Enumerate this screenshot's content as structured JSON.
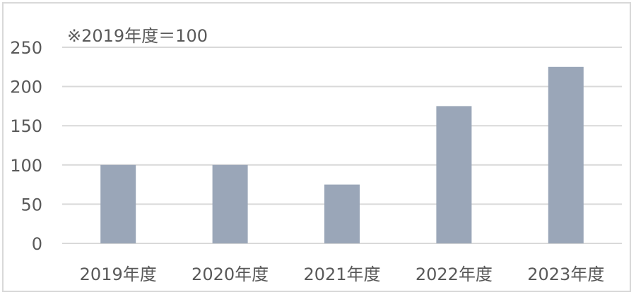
{
  "chart_data": {
    "type": "bar",
    "note": "※2019年度＝100",
    "categories": [
      "2019年度",
      "2020年度",
      "2021年度",
      "2022年度",
      "2023年度"
    ],
    "values": [
      100,
      100,
      75,
      175,
      225
    ],
    "y_ticks": [
      0,
      50,
      100,
      150,
      200,
      250
    ],
    "ylim": [
      0,
      250
    ],
    "grid": true,
    "bar_color": "#9aa6b8",
    "grid_color": "#d9d9d9"
  }
}
